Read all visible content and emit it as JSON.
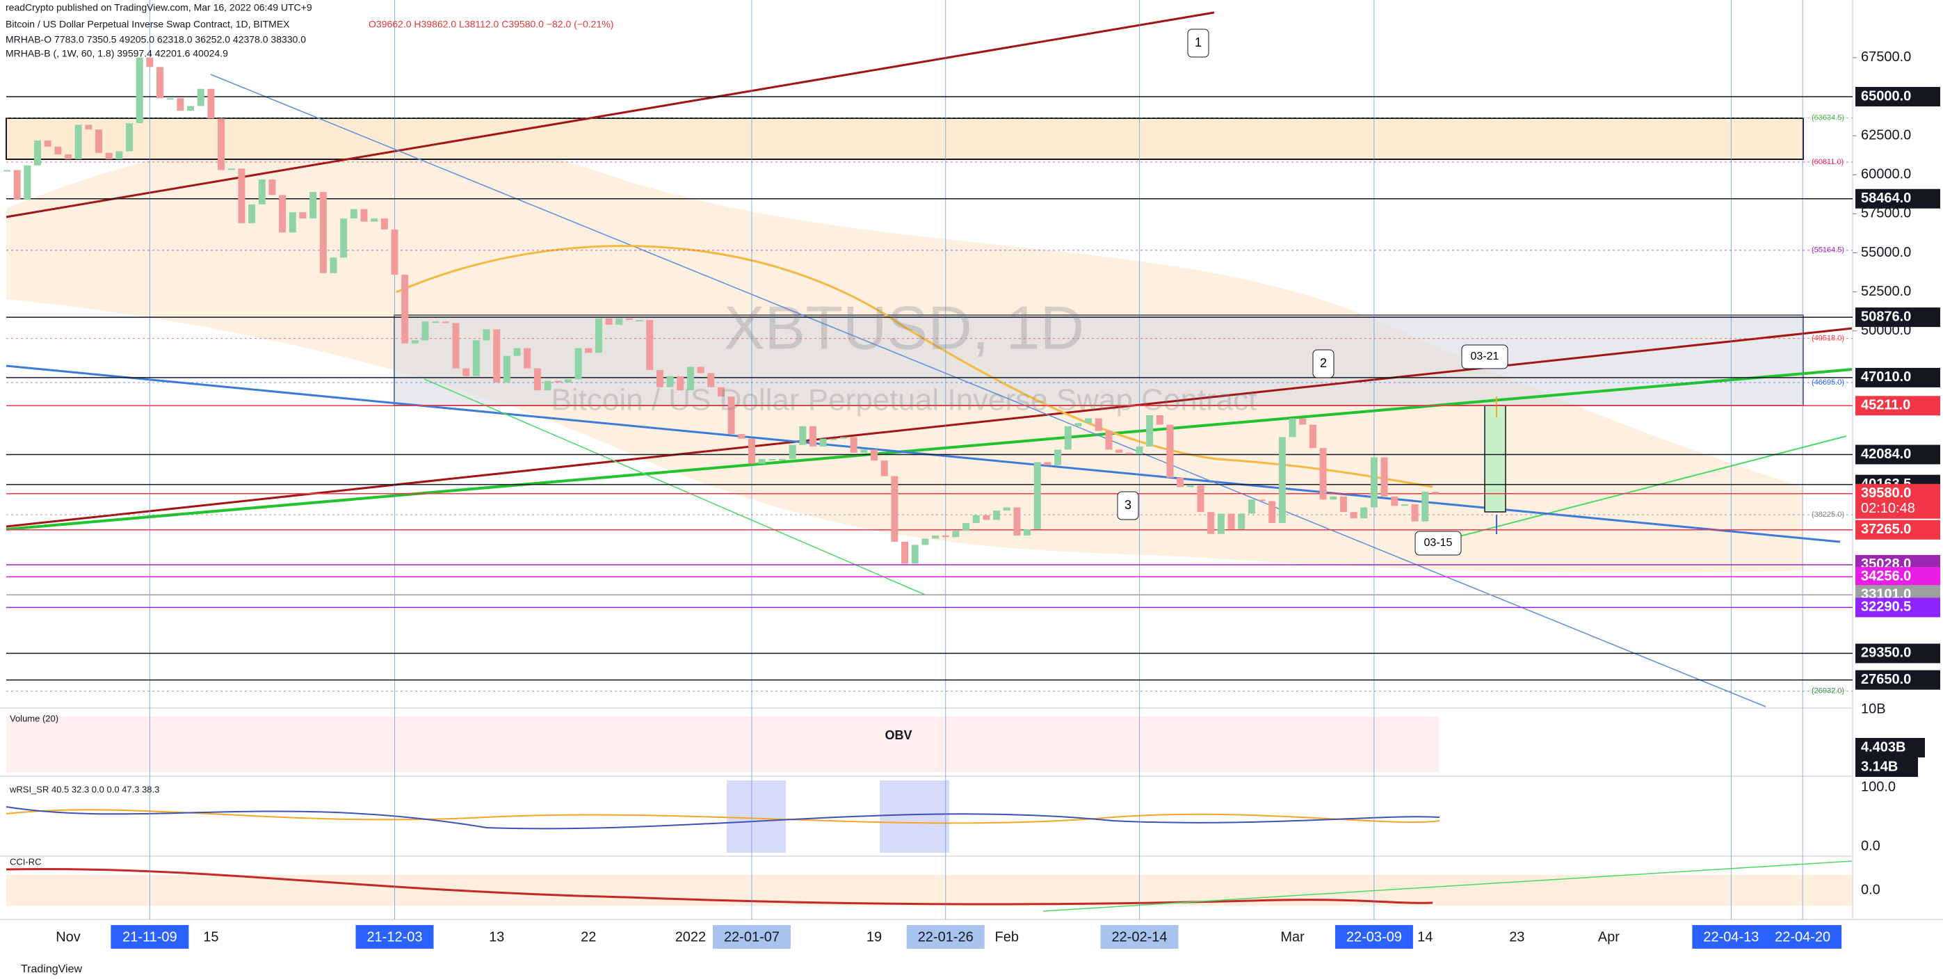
{
  "header": {
    "publisher": "readCrypto published on TradingView.com, Mar 16, 2022 06:49 UTC+9",
    "symbol": "Bitcoin / US Dollar Perpetual Inverse Swap Contract, 1D, BITMEX",
    "ohlc": "O39662.0 H39862.0 L38112.0 C39580.0 −82.0 (−0.21%)",
    "ind1": "MRHAB-O 7783.0 7350.5 49205.0 62318.0 36252.0 42378.0 38330.0",
    "ind2": "MRHAB-B (, 1W, 60, 1.8) 39597.4 42201.6 40024.9"
  },
  "watermark": {
    "ticker": "XBTUSD, 1D",
    "name": "Bitcoin / US Dollar Perpetual Inverse Swap Contract"
  },
  "annotations": {
    "a1": "1",
    "a2": "2",
    "a3": "3",
    "d1": "03-21",
    "d2": "03-15"
  },
  "panes": {
    "volume": "Volume (20)",
    "obv": "OBV",
    "vol_top": "10B",
    "vol_a": "4.403B",
    "vol_b": "3.14B",
    "rsi": "wRSI_SR 40.5 32.3 0.0 0.0 47.3 38.3",
    "rsi_top": "100.0",
    "rsi_bot": "0.0",
    "cci": "CCI-RC",
    "cci_zero": "0.0"
  },
  "footer": "TradingView",
  "chart_data": {
    "type": "candlestick",
    "xlim": [
      -6.68,
      174.9
    ],
    "ylim": [
      25940,
      71190
    ],
    "yticks": [
      {
        "value": 67500,
        "label": "67500.0"
      },
      {
        "value": 62500,
        "label": "62500.0"
      },
      {
        "value": 60000,
        "label": "60000.0"
      },
      {
        "value": 57500,
        "label": "57500.0"
      },
      {
        "value": 55000,
        "label": "55000.0"
      },
      {
        "value": 52500,
        "label": "52500.0"
      },
      {
        "value": 50000,
        "label": "50000.0"
      }
    ],
    "price_labels": [
      {
        "value": 65000,
        "label": "65000.0",
        "bg": "#131722"
      },
      {
        "value": 58464,
        "label": "58464.0",
        "bg": "#131722"
      },
      {
        "value": 50876,
        "label": "50876.0",
        "bg": "#131722"
      },
      {
        "value": 47010,
        "label": "47010.0",
        "bg": "#131722"
      },
      {
        "value": 45211,
        "label": "45211.0",
        "bg": "#f23645"
      },
      {
        "value": 42084,
        "label": "42084.0",
        "bg": "#131722"
      },
      {
        "value": 40163.5,
        "label": "40163.5",
        "bg": "#131722"
      },
      {
        "value": 39580,
        "label": "39580.0",
        "bg": "#f23645"
      },
      {
        "value": 37265,
        "label": "37265.0",
        "bg": "#f23645"
      },
      {
        "value": 35028,
        "label": "35028.0",
        "bg": "#9c27b0"
      },
      {
        "value": 34256,
        "label": "34256.0",
        "bg": "#e040fb"
      },
      {
        "value": 34256,
        "label": "34256.0",
        "bg": "#e91ee6"
      },
      {
        "value": 33101,
        "label": "33101.0",
        "bg": "#9e9e9e"
      },
      {
        "value": 32290.5,
        "label": "32290.5",
        "bg": "#8e24ff"
      },
      {
        "value": 29350,
        "label": "29350.0",
        "bg": "#131722"
      },
      {
        "value": 27650,
        "label": "27650.0",
        "bg": "#131722"
      }
    ],
    "countdown": "02:10:48",
    "level_notes": [
      {
        "value": 63634.5,
        "label": "(63634.5)",
        "color": "#4caf50"
      },
      {
        "value": 60811,
        "label": "(60811.0)",
        "color": "#e91e63"
      },
      {
        "value": 55164.5,
        "label": "(55164.5)",
        "color": "#9c27b0"
      },
      {
        "value": 49518,
        "label": "(49518.0)",
        "color": "#f23645"
      },
      {
        "value": 46695,
        "label": "(46695.0)",
        "color": "#2962ff"
      },
      {
        "value": 38225,
        "label": "(38225.0)",
        "color": "#787b86"
      },
      {
        "value": 26932,
        "label": "(26932.0)",
        "color": "#388e3c"
      }
    ],
    "xticks": [
      {
        "value": 0,
        "label": "Nov"
      },
      {
        "value": 8,
        "label": "21-11-09",
        "bg": "#2962ff"
      },
      {
        "value": 14,
        "label": "15"
      },
      {
        "value": 32,
        "label": "21-12-03",
        "bg": "#2962ff"
      },
      {
        "value": 42,
        "label": "13"
      },
      {
        "value": 51,
        "label": "22"
      },
      {
        "value": 61,
        "label": "2022"
      },
      {
        "value": 67,
        "label": "22-01-07",
        "bg": "#a8c4ee"
      },
      {
        "value": 79,
        "label": "19"
      },
      {
        "value": 86,
        "label": "22-01-26",
        "bg": "#a8c4ee"
      },
      {
        "value": 92,
        "label": "Feb"
      },
      {
        "value": 105,
        "label": "22-02-14",
        "bg": "#a8c4ee"
      },
      {
        "value": 120,
        "label": "Mar"
      },
      {
        "value": 128,
        "label": "22-03-09",
        "bg": "#2962ff"
      },
      {
        "value": 133,
        "label": "14"
      },
      {
        "value": 142,
        "label": "23"
      },
      {
        "value": 151,
        "label": "Apr"
      },
      {
        "value": 163,
        "label": "22-04-13",
        "bg": "#2962ff"
      },
      {
        "value": 170,
        "label": "22-04-20",
        "bg": "#2962ff"
      }
    ],
    "up_color": "#8fd3a6",
    "down_color": "#f29b9b",
    "x": [
      -6,
      -5,
      -4,
      -3,
      -2,
      -1,
      0,
      1,
      2,
      3,
      4,
      5,
      6,
      7,
      8,
      9,
      10,
      11,
      12,
      13,
      14,
      15,
      16,
      17,
      18,
      19,
      20,
      21,
      22,
      23,
      24,
      25,
      26,
      27,
      28,
      29,
      30,
      31,
      32,
      33,
      34,
      35,
      36,
      37,
      38,
      39,
      40,
      41,
      42,
      43,
      44,
      45,
      46,
      47,
      48,
      49,
      50,
      51,
      52,
      53,
      54,
      55,
      56,
      57,
      58,
      59,
      60,
      61,
      62,
      63,
      64,
      65,
      66,
      67,
      68,
      69,
      70,
      71,
      72,
      73,
      74,
      75,
      76,
      77,
      78,
      79,
      80,
      81,
      82,
      83,
      84,
      85,
      86,
      87,
      88,
      89,
      90,
      91,
      92,
      93,
      94,
      95,
      96,
      97,
      98,
      99,
      100,
      101,
      102,
      103,
      104,
      105,
      106,
      107,
      108,
      109,
      110,
      111,
      112,
      113,
      114,
      115,
      116,
      117,
      118,
      119,
      120,
      121,
      122,
      123,
      124,
      125,
      126,
      127,
      128,
      129,
      130,
      131,
      132,
      133,
      134
    ],
    "close": [
      60300,
      58400,
      60600,
      62200,
      61800,
      61300,
      61000,
      63200,
      62900,
      61400,
      61000,
      61500,
      63300,
      67500,
      66900,
      64900,
      64900,
      64100,
      64400,
      65500,
      63600,
      60300,
      60400,
      56900,
      58100,
      59700,
      58700,
      56300,
      57600,
      57200,
      58900,
      53700,
      54700,
      57200,
      57800,
      57000,
      57200,
      56500,
      53600,
      49200,
      49400,
      50600,
      50600,
      50500,
      47600,
      47100,
      49400,
      50100,
      46700,
      48400,
      48900,
      47600,
      46200,
      46800,
      46700,
      46900,
      48900,
      48600,
      50800,
      50400,
      50800,
      50700,
      50700,
      47500,
      46400,
      47100,
      46200,
      47700,
      47300,
      46400,
      45800,
      43400,
      43100,
      41500,
      41800,
      41800,
      41800,
      42700,
      43900,
      42600,
      43100,
      43100,
      43200,
      42200,
      42400,
      41700,
      40700,
      36500,
      35100,
      36300,
      36700,
      36900,
      36800,
      37200,
      37700,
      38200,
      37900,
      38500,
      38700,
      36900,
      37300,
      41600,
      41400,
      42400,
      43900,
      44100,
      44400,
      43600,
      42400,
      42200,
      42100,
      42600,
      44600,
      44000,
      40600,
      40000,
      40100,
      38400,
      37000,
      38300,
      37300,
      38300,
      39200,
      39100,
      37700,
      43200,
      44400,
      44000,
      42500,
      39200,
      39400,
      38400,
      38000,
      38700,
      41900,
      39400,
      38800,
      38900,
      37800,
      39700,
      39580
    ]
  }
}
